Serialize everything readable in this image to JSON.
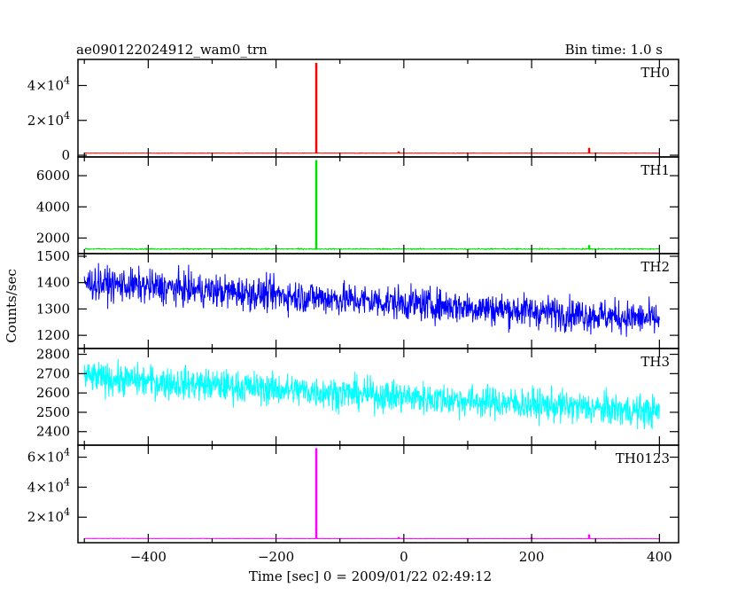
{
  "chart_data": {
    "type": "line",
    "title": "ae090122024912_wam0_trn",
    "subtitle": "Bin time: 1.0 s",
    "xlabel": "Time [sec] 0 = 2009/01/22 02:49:12",
    "ylabel": "Counts/sec",
    "xlim": [
      -510,
      430
    ],
    "x_ticks": [
      -400,
      -200,
      0,
      200,
      400
    ],
    "x_tick_labels": [
      "−400",
      "−200",
      "0",
      "200",
      "400"
    ],
    "x_range": [
      -500,
      400
    ],
    "grid": false,
    "panels": [
      {
        "name": "TH0",
        "color": "#ff0000",
        "ylim": [
          -1000,
          55000
        ],
        "y_ticks": [
          0,
          20000,
          40000
        ],
        "y_tick_labels": [
          {
            "base": "0",
            "exp": ""
          },
          {
            "base": "2×10",
            "exp": "4"
          },
          {
            "base": "4×10",
            "exp": "4"
          }
        ],
        "baseline": 1200,
        "noise": 80,
        "trend": 0,
        "spikes": [
          {
            "x": -137,
            "y": 53000
          },
          {
            "x": 290,
            "y": 4200
          },
          {
            "x": -8,
            "y": 2200
          }
        ]
      },
      {
        "name": "TH1",
        "color": "#00e000",
        "ylim": [
          1000,
          7200
        ],
        "y_ticks": [
          2000,
          4000,
          6000
        ],
        "y_tick_labels": [
          {
            "base": "2000",
            "exp": ""
          },
          {
            "base": "4000",
            "exp": ""
          },
          {
            "base": "6000",
            "exp": ""
          }
        ],
        "baseline": 1300,
        "noise": 25,
        "trend": 0,
        "spikes": [
          {
            "x": -137,
            "y": 7000
          },
          {
            "x": 290,
            "y": 1550
          }
        ]
      },
      {
        "name": "TH2",
        "color": "#0000ff",
        "ylim": [
          1150,
          1510
        ],
        "y_ticks": [
          1200,
          1300,
          1400,
          1500
        ],
        "y_tick_labels": [
          {
            "base": "1200",
            "exp": ""
          },
          {
            "base": "1300",
            "exp": ""
          },
          {
            "base": "1400",
            "exp": ""
          },
          {
            "base": "1500",
            "exp": ""
          }
        ],
        "baseline": 1400,
        "noise": 45,
        "trend": -140,
        "spikes": []
      },
      {
        "name": "TH3",
        "color": "#00ffff",
        "ylim": [
          2330,
          2830
        ],
        "y_ticks": [
          2400,
          2500,
          2600,
          2700,
          2800
        ],
        "y_tick_labels": [
          {
            "base": "2400",
            "exp": ""
          },
          {
            "base": "2500",
            "exp": ""
          },
          {
            "base": "2600",
            "exp": ""
          },
          {
            "base": "2700",
            "exp": ""
          },
          {
            "base": "2800",
            "exp": ""
          }
        ],
        "baseline": 2680,
        "noise": 60,
        "trend": -180,
        "spikes": []
      },
      {
        "name": "TH0123",
        "color": "#ff00ff",
        "ylim": [
          3000,
          68000
        ],
        "y_ticks": [
          20000,
          40000,
          60000
        ],
        "y_tick_labels": [
          {
            "base": "2×10",
            "exp": "4"
          },
          {
            "base": "4×10",
            "exp": "4"
          },
          {
            "base": "6×10",
            "exp": "4"
          }
        ],
        "baseline": 5800,
        "noise": 90,
        "trend": -200,
        "spikes": [
          {
            "x": -137,
            "y": 66000
          },
          {
            "x": 290,
            "y": 8500
          },
          {
            "x": -8,
            "y": 6800
          },
          {
            "x": 200,
            "y": 6600
          }
        ]
      }
    ]
  }
}
